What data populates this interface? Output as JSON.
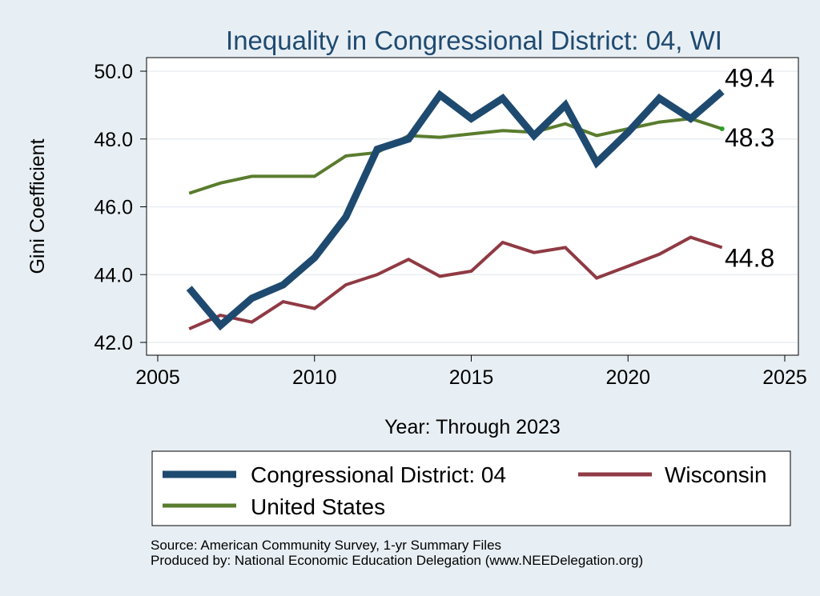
{
  "chart_data": {
    "type": "line",
    "title": "Inequality in Congressional District:  04, WI",
    "xlabel": "Year: Through 2023",
    "ylabel": "Gini Coefficient",
    "xlim": [
      2005,
      2025
    ],
    "ylim": [
      42.0,
      50.0
    ],
    "x_ticks": [
      "2005",
      "2010",
      "2015",
      "2020",
      "2025"
    ],
    "y_ticks": [
      "42.0",
      "44.0",
      "46.0",
      "48.0",
      "50.0"
    ],
    "grid": true,
    "legend_position": "bottom",
    "series": [
      {
        "name": "Congressional District:  04",
        "color": "#1f4a70",
        "x": [
          2006,
          2007,
          2008,
          2009,
          2010,
          2011,
          2012,
          2013,
          2014,
          2015,
          2016,
          2017,
          2018,
          2019,
          2020,
          2021,
          2022,
          2023
        ],
        "values": [
          43.6,
          42.5,
          43.3,
          43.7,
          44.5,
          45.7,
          47.7,
          48.0,
          49.3,
          48.6,
          49.2,
          48.1,
          49.0,
          47.3,
          48.2,
          49.2,
          48.6,
          49.4
        ],
        "end_label": "49.4"
      },
      {
        "name": "Wisconsin",
        "color": "#8f3a44",
        "x": [
          2006,
          2007,
          2008,
          2009,
          2010,
          2011,
          2012,
          2013,
          2014,
          2015,
          2016,
          2017,
          2018,
          2019,
          2020,
          2021,
          2022,
          2023
        ],
        "values": [
          42.4,
          42.8,
          42.6,
          43.2,
          43.0,
          43.7,
          44.0,
          44.45,
          43.95,
          44.1,
          44.95,
          44.65,
          44.8,
          43.9,
          44.25,
          44.6,
          45.1,
          44.8
        ],
        "end_label": "44.8"
      },
      {
        "name": "United States",
        "color": "#5a7c2e",
        "x": [
          2006,
          2007,
          2008,
          2009,
          2010,
          2011,
          2012,
          2013,
          2014,
          2015,
          2016,
          2017,
          2018,
          2019,
          2020,
          2021,
          2022,
          2023
        ],
        "values": [
          46.4,
          46.7,
          46.9,
          46.9,
          46.9,
          47.5,
          47.6,
          48.1,
          48.05,
          48.15,
          48.25,
          48.2,
          48.45,
          48.1,
          48.3,
          48.5,
          48.6,
          48.3
        ],
        "end_label": "48.3"
      }
    ]
  },
  "source_notes": [
    "Source: American Community Survey, 1-yr Summary Files",
    "Produced by: National Economic Education Delegation (www.NEEDelegation.org)"
  ]
}
